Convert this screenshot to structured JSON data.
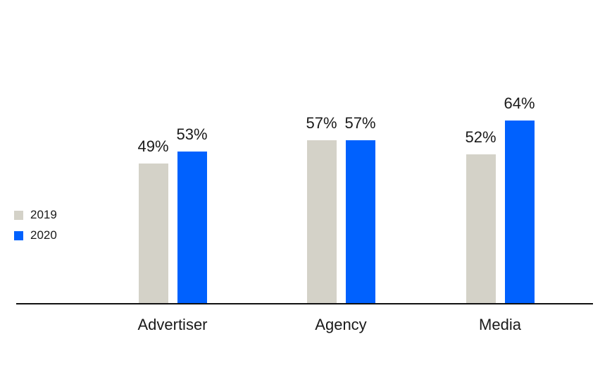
{
  "chart_data": {
    "type": "bar",
    "categories": [
      "Advertiser",
      "Agency",
      "Media"
    ],
    "series": [
      {
        "name": "2019",
        "color": "#d4d2c8",
        "values": [
          49,
          57,
          52
        ]
      },
      {
        "name": "2020",
        "color": "#0061fe",
        "values": [
          53,
          57,
          64
        ]
      }
    ],
    "value_suffix": "%",
    "title": "",
    "xlabel": "",
    "ylabel": "",
    "ylim": [
      0,
      100
    ],
    "grid": false,
    "legend_position": "middle-left",
    "value_labels": [
      "49%",
      "53%",
      "57%",
      "57%",
      "52%",
      "64%"
    ]
  },
  "colors": {
    "text": "#1a1a1a",
    "axis": "#111111",
    "background": "#ffffff",
    "series_2019": "#d4d2c8",
    "series_2020": "#0061fe"
  }
}
